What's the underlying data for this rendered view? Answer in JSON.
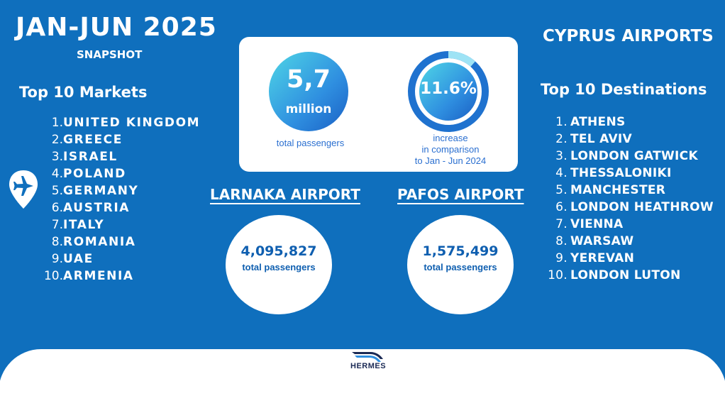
{
  "header": {
    "title": "JAN-JUN 2025",
    "subtitle": "SNAPSHOT",
    "brand": "CYPRUS AIRPORTS"
  },
  "markets": {
    "title": "Top 10 Markets",
    "items": [
      {
        "num": "1.",
        "name": "UNITED KINGDOM"
      },
      {
        "num": "2.",
        "name": "GREECE"
      },
      {
        "num": "3.",
        "name": "ISRAEL"
      },
      {
        "num": "4.",
        "name": "POLAND"
      },
      {
        "num": "5.",
        "name": "GERMANY"
      },
      {
        "num": "6.",
        "name": "AUSTRIA"
      },
      {
        "num": "7.",
        "name": "ITALY"
      },
      {
        "num": "8.",
        "name": "ROMANIA"
      },
      {
        "num": "9.",
        "name": "UAE"
      },
      {
        "num": "10.",
        "name": "ARMENIA"
      }
    ]
  },
  "destinations": {
    "title": "Top 10 Destinations",
    "items": [
      {
        "num": "1.",
        "name": "ATHENS"
      },
      {
        "num": "2.",
        "name": "TEL AVIV"
      },
      {
        "num": "3.",
        "name": "LONDON GATWICK"
      },
      {
        "num": "4.",
        "name": "THESSALONIKI"
      },
      {
        "num": "5.",
        "name": "MANCHESTER"
      },
      {
        "num": "6.",
        "name": "LONDON HEATHROW"
      },
      {
        "num": "7.",
        "name": "VIENNA"
      },
      {
        "num": "8.",
        "name": "WARSAW"
      },
      {
        "num": "9.",
        "name": "YEREVAN"
      },
      {
        "num": "10.",
        "name": "LONDON LUTON"
      }
    ]
  },
  "stats": {
    "passengers_value": "5,7",
    "passengers_unit": "million",
    "passengers_label": "total passengers",
    "increase_value": "11.6%",
    "increase_fraction": 0.116,
    "increase_line1": "increase",
    "increase_line2": "in comparison",
    "increase_line3": "to Jan - Jun 2024"
  },
  "airports": {
    "larnaka": {
      "title": "LARNAKA AIRPORT",
      "value": "4,095,827",
      "label": "total passengers"
    },
    "pafos": {
      "title": "PAFOS AIRPORT",
      "value": "1,575,499",
      "label": "total passengers"
    }
  },
  "footer": {
    "logo_text": "HERMES"
  },
  "icons": {
    "pin": "airplane-pin-icon",
    "logo": "hermes-logo-icon"
  },
  "colors": {
    "background": "#0f6fbd",
    "card": "#ffffff",
    "accent": "#2a6fd0"
  }
}
